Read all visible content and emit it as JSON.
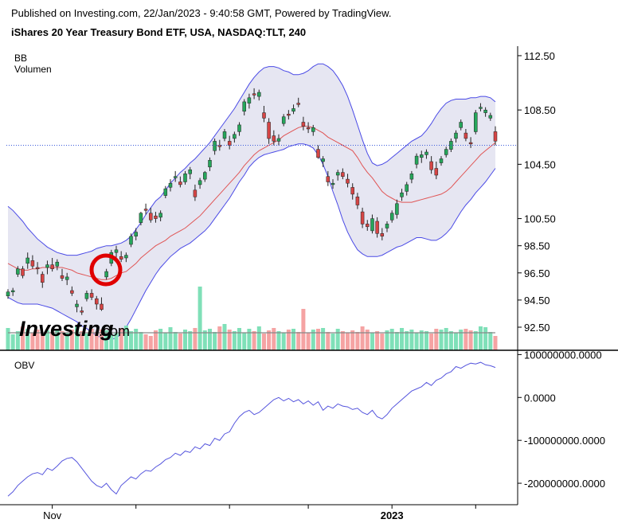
{
  "header": {
    "published": "Published on Investing.com, 22/Jan/2023 - 9:40:58 GMT, Powered by TradingView.",
    "title": "iShares 20  Year Treasury Bond ETF, USA, NASDAQ:TLT, 240"
  },
  "watermark": {
    "text": "Investing",
    "suffix": ".com"
  },
  "colors": {
    "up": "#26a65b",
    "down": "#d64545",
    "band_fill": "#e6e6f2",
    "band_line": "#4a4ae6",
    "basis": "#e05555",
    "obv": "#5555dd",
    "vol_up": "#7fe0b8",
    "vol_down": "#f5a3a3",
    "vol_ma": "#888888",
    "marker": "#e00000"
  },
  "chart_data": [
    {
      "type": "candlestick",
      "indicator_labels": [
        "BB",
        "Volumen"
      ],
      "ylim": [
        90.8,
        113.2
      ],
      "y_ticks": [
        "112.50",
        "108.50",
        "104.50",
        "100.50",
        "98.50",
        "96.50",
        "94.50",
        "92.50"
      ],
      "last_price": 105.9,
      "candles": [
        [
          94.8,
          95.3,
          94.6,
          95.1
        ],
        [
          95.1,
          95.4,
          94.8,
          95.2
        ],
        [
          96.4,
          97.0,
          96.2,
          96.8
        ],
        [
          96.8,
          97.0,
          96.1,
          96.3
        ],
        [
          97.2,
          98.0,
          96.8,
          97.6
        ],
        [
          97.4,
          97.8,
          96.8,
          97.0
        ],
        [
          96.9,
          97.3,
          96.4,
          96.8
        ],
        [
          96.4,
          96.6,
          95.4,
          95.8
        ],
        [
          96.9,
          97.4,
          96.4,
          97.1
        ],
        [
          97.1,
          97.6,
          96.6,
          96.8
        ],
        [
          97.0,
          97.5,
          96.7,
          97.3
        ],
        [
          96.3,
          96.8,
          95.9,
          96.1
        ],
        [
          96.0,
          96.5,
          95.6,
          96.2
        ],
        [
          95.2,
          95.5,
          94.8,
          95.0
        ],
        [
          94.0,
          94.5,
          93.6,
          94.2
        ],
        [
          93.7,
          94.0,
          93.4,
          93.6
        ],
        [
          94.6,
          95.2,
          94.4,
          95.0
        ],
        [
          95.0,
          95.3,
          94.5,
          94.7
        ],
        [
          94.6,
          94.8,
          93.8,
          94.2
        ],
        [
          94.2,
          94.7,
          93.7,
          93.8
        ],
        [
          96.2,
          96.8,
          96.0,
          96.6
        ],
        [
          97.2,
          98.2,
          97.0,
          98.0
        ],
        [
          98.0,
          98.5,
          97.4,
          98.2
        ],
        [
          97.7,
          98.1,
          97.3,
          97.5
        ],
        [
          97.6,
          98.0,
          97.3,
          97.8
        ],
        [
          98.6,
          99.4,
          98.4,
          99.2
        ],
        [
          99.2,
          99.8,
          98.9,
          99.5
        ],
        [
          100.2,
          101.0,
          100.0,
          100.9
        ],
        [
          101.2,
          101.6,
          100.8,
          101.1
        ],
        [
          100.9,
          101.3,
          100.2,
          100.4
        ],
        [
          100.7,
          101.0,
          100.2,
          100.5
        ],
        [
          100.6,
          101.1,
          100.3,
          100.9
        ],
        [
          102.2,
          102.9,
          102.0,
          102.7
        ],
        [
          102.8,
          103.4,
          102.5,
          103.1
        ],
        [
          103.5,
          104.0,
          103.2,
          103.6
        ],
        [
          103.2,
          103.6,
          102.8,
          103.0
        ],
        [
          103.2,
          104.0,
          103.0,
          103.8
        ],
        [
          103.8,
          104.3,
          103.4,
          104.1
        ],
        [
          102.6,
          103.0,
          101.8,
          102.1
        ],
        [
          103.0,
          103.5,
          102.7,
          103.3
        ],
        [
          103.4,
          104.0,
          103.2,
          103.9
        ],
        [
          104.3,
          105.0,
          104.0,
          104.8
        ],
        [
          105.5,
          106.4,
          105.2,
          106.2
        ],
        [
          105.9,
          106.3,
          105.5,
          105.8
        ],
        [
          106.4,
          107.1,
          106.2,
          106.9
        ],
        [
          106.2,
          106.6,
          105.6,
          105.9
        ],
        [
          106.4,
          106.9,
          106.1,
          106.7
        ],
        [
          106.9,
          107.6,
          106.6,
          107.4
        ],
        [
          108.4,
          109.3,
          108.1,
          109.1
        ],
        [
          109.0,
          109.7,
          108.6,
          109.4
        ],
        [
          109.7,
          110.1,
          109.3,
          109.6
        ],
        [
          109.5,
          110.0,
          109.2,
          109.8
        ],
        [
          108.3,
          108.8,
          107.6,
          107.9
        ],
        [
          107.6,
          107.9,
          106.0,
          106.4
        ],
        [
          106.6,
          107.0,
          105.9,
          106.2
        ],
        [
          106.2,
          106.7,
          105.9,
          106.4
        ],
        [
          107.5,
          108.2,
          107.3,
          108.0
        ],
        [
          108.2,
          108.5,
          107.8,
          108.1
        ],
        [
          108.4,
          108.9,
          108.2,
          108.6
        ],
        [
          109.0,
          109.4,
          108.7,
          108.9
        ],
        [
          107.6,
          108.0,
          107.0,
          107.3
        ],
        [
          107.2,
          107.6,
          106.8,
          107.1
        ],
        [
          106.9,
          107.4,
          106.6,
          107.2
        ],
        [
          105.6,
          105.9,
          104.9,
          105.0
        ],
        [
          104.7,
          105.1,
          104.3,
          104.9
        ],
        [
          103.6,
          104.0,
          102.9,
          103.2
        ],
        [
          103.0,
          103.4,
          102.7,
          103.1
        ],
        [
          103.7,
          104.1,
          103.3,
          103.9
        ],
        [
          103.9,
          104.2,
          103.4,
          103.6
        ],
        [
          103.4,
          103.8,
          102.8,
          103.1
        ],
        [
          102.8,
          103.1,
          101.9,
          102.3
        ],
        [
          102.1,
          102.4,
          101.2,
          101.5
        ],
        [
          101.0,
          101.3,
          99.8,
          100.1
        ],
        [
          100.1,
          100.4,
          99.6,
          99.9
        ],
        [
          99.6,
          100.8,
          99.4,
          100.5
        ],
        [
          100.3,
          100.6,
          99.1,
          99.4
        ],
        [
          99.4,
          99.8,
          98.9,
          99.2
        ],
        [
          99.8,
          100.3,
          99.5,
          100.1
        ],
        [
          100.4,
          101.1,
          100.2,
          100.9
        ],
        [
          100.8,
          101.9,
          100.5,
          101.6
        ],
        [
          102.1,
          102.7,
          101.8,
          102.4
        ],
        [
          102.5,
          103.2,
          102.2,
          103.0
        ],
        [
          103.4,
          104.0,
          103.1,
          103.8
        ],
        [
          104.5,
          105.3,
          104.2,
          105.1
        ],
        [
          105.0,
          105.5,
          104.6,
          105.2
        ],
        [
          105.2,
          105.6,
          104.9,
          105.4
        ],
        [
          104.7,
          105.1,
          103.8,
          104.1
        ],
        [
          104.2,
          104.7,
          103.4,
          103.7
        ],
        [
          104.6,
          105.1,
          104.4,
          104.9
        ],
        [
          105.2,
          105.8,
          105.0,
          105.6
        ],
        [
          105.6,
          106.4,
          105.4,
          106.2
        ],
        [
          106.4,
          107.0,
          106.1,
          106.8
        ],
        [
          107.2,
          107.8,
          107.0,
          107.6
        ],
        [
          106.8,
          107.1,
          106.2,
          106.4
        ],
        [
          106.1,
          106.5,
          105.7,
          106.0
        ],
        [
          106.9,
          108.5,
          106.7,
          108.3
        ],
        [
          108.6,
          109.0,
          108.4,
          108.7
        ],
        [
          108.3,
          108.7,
          108.0,
          108.5
        ],
        [
          107.9,
          108.3,
          107.7,
          108.1
        ],
        [
          106.9,
          107.3,
          105.9,
          106.2
        ]
      ],
      "bb_upper": [
        101.4,
        101.1,
        100.7,
        100.3,
        99.8,
        99.4,
        99.0,
        98.7,
        98.4,
        98.2,
        98.0,
        97.9,
        97.8,
        97.8,
        97.8,
        97.9,
        98.0,
        98.1,
        98.3,
        98.4,
        98.5,
        98.5,
        98.6,
        98.7,
        98.9,
        99.2,
        99.7,
        100.2,
        100.8,
        101.3,
        101.8,
        102.1,
        102.6,
        103.1,
        103.5,
        103.9,
        104.2,
        104.6,
        104.9,
        105.3,
        105.7,
        106.1,
        106.6,
        107.1,
        107.6,
        108.1,
        108.6,
        109.2,
        109.8,
        110.4,
        110.9,
        111.3,
        111.6,
        111.7,
        111.7,
        111.6,
        111.4,
        111.3,
        111.1,
        111.1,
        111.2,
        111.4,
        111.7,
        111.9,
        111.9,
        111.7,
        111.4,
        110.9,
        110.3,
        109.5,
        108.5,
        107.4,
        106.3,
        105.3,
        104.6,
        104.4,
        104.5,
        104.7,
        105.0,
        105.3,
        105.6,
        105.9,
        106.2,
        106.4,
        106.6,
        107.0,
        107.5,
        108.1,
        108.6,
        109.0,
        109.2,
        109.3,
        109.3,
        109.3,
        109.4,
        109.4,
        109.5,
        109.5,
        109.4,
        109.1
      ],
      "bb_basis": [
        97.2,
        97.0,
        96.8,
        96.7,
        96.7,
        96.8,
        96.8,
        96.9,
        96.9,
        96.9,
        96.9,
        96.9,
        96.8,
        96.7,
        96.5,
        96.4,
        96.3,
        96.2,
        96.1,
        96.0,
        96.0,
        96.1,
        96.3,
        96.5,
        96.6,
        96.9,
        97.2,
        97.6,
        97.9,
        98.2,
        98.5,
        98.7,
        98.9,
        99.2,
        99.4,
        99.6,
        99.8,
        100.1,
        100.4,
        100.7,
        101.1,
        101.5,
        101.9,
        102.3,
        102.7,
        103.1,
        103.5,
        103.9,
        104.4,
        104.8,
        105.2,
        105.5,
        105.7,
        105.9,
        106.1,
        106.3,
        106.6,
        106.8,
        107.0,
        107.2,
        107.3,
        107.3,
        107.2,
        107.0,
        106.8,
        106.5,
        106.3,
        106.1,
        105.9,
        105.7,
        105.5,
        105.0,
        104.4,
        103.9,
        103.5,
        103.0,
        102.5,
        102.2,
        102.0,
        101.8,
        101.7,
        101.7,
        101.7,
        101.8,
        101.9,
        102.0,
        102.1,
        102.2,
        102.3,
        102.5,
        102.8,
        103.2,
        103.6,
        104.0,
        104.4,
        104.8,
        105.2,
        105.5,
        105.8,
        106.1
      ],
      "bb_lower": [
        94.7,
        94.5,
        94.3,
        94.2,
        94.2,
        94.2,
        94.2,
        94.1,
        94.0,
        93.9,
        93.7,
        93.5,
        93.3,
        93.1,
        92.9,
        92.6,
        92.4,
        92.1,
        91.9,
        91.7,
        91.6,
        91.6,
        91.7,
        92.0,
        92.5,
        93.1,
        93.8,
        94.5,
        95.2,
        95.8,
        96.4,
        96.9,
        97.3,
        97.7,
        98.0,
        98.3,
        98.5,
        98.7,
        99.0,
        99.3,
        99.6,
        100.0,
        100.5,
        101.0,
        101.5,
        102.0,
        102.6,
        103.2,
        103.7,
        104.3,
        104.7,
        105.0,
        105.2,
        105.3,
        105.4,
        105.5,
        105.6,
        105.8,
        105.9,
        106.0,
        106.0,
        105.9,
        105.7,
        105.2,
        104.5,
        103.6,
        102.5,
        101.5,
        100.4,
        99.5,
        98.8,
        98.2,
        97.9,
        97.7,
        97.7,
        97.7,
        97.8,
        98.0,
        98.2,
        98.4,
        98.5,
        98.7,
        98.9,
        99.1,
        99.1,
        99.0,
        98.9,
        98.9,
        99.1,
        99.4,
        99.8,
        100.4,
        101.0,
        101.5,
        101.9,
        102.4,
        102.8,
        103.2,
        103.7,
        104.2
      ],
      "volume_ylim": [
        0,
        100
      ],
      "volume": [
        28,
        20,
        24,
        30,
        27,
        22,
        26,
        21,
        25,
        23,
        27,
        24,
        22,
        26,
        30,
        24,
        21,
        27,
        23,
        26,
        25,
        19,
        22,
        28,
        31,
        24,
        27,
        23,
        20,
        18,
        25,
        27,
        22,
        29,
        23,
        21,
        26,
        24,
        28,
        22,
        25,
        27,
        23,
        30,
        33,
        26,
        24,
        28,
        22,
        27,
        24,
        30,
        21,
        25,
        28,
        24,
        22,
        26,
        27,
        23,
        25,
        22,
        26,
        27,
        28,
        23,
        21,
        27,
        24,
        22,
        25,
        23,
        30,
        26,
        22,
        24,
        21,
        25,
        27,
        23,
        28,
        24,
        26,
        22,
        25,
        24,
        21,
        27,
        26,
        28,
        24,
        22,
        26,
        27,
        25,
        24,
        30,
        29,
        23,
        18
      ],
      "volume_spikes": {
        "39": 80,
        "60": 52
      },
      "volume_ma": 22
    },
    {
      "type": "line",
      "indicator_label": "OBV",
      "ylim": [
        -250000000,
        110000000
      ],
      "y_ticks": [
        "100000000.0000",
        "0.0000",
        "-100000000.0000",
        "-200000000.0000"
      ],
      "x_labels": [
        "Nov",
        "2023"
      ],
      "obv": [
        -230000000,
        -220000000,
        -205000000,
        -195000000,
        -185000000,
        -178000000,
        -175000000,
        -180000000,
        -165000000,
        -170000000,
        -160000000,
        -148000000,
        -142000000,
        -140000000,
        -150000000,
        -165000000,
        -180000000,
        -195000000,
        -205000000,
        -210000000,
        -200000000,
        -215000000,
        -225000000,
        -205000000,
        -195000000,
        -185000000,
        -190000000,
        -178000000,
        -170000000,
        -172000000,
        -162000000,
        -155000000,
        -145000000,
        -140000000,
        -130000000,
        -135000000,
        -125000000,
        -128000000,
        -115000000,
        -120000000,
        -108000000,
        -112000000,
        -95000000,
        -100000000,
        -85000000,
        -80000000,
        -60000000,
        -45000000,
        -35000000,
        -30000000,
        -40000000,
        -35000000,
        -25000000,
        -15000000,
        -5000000,
        0,
        -8000000,
        -2000000,
        -10000000,
        -5000000,
        -15000000,
        -8000000,
        -18000000,
        -10000000,
        -30000000,
        -20000000,
        -25000000,
        -15000000,
        -20000000,
        -22000000,
        -28000000,
        -25000000,
        -35000000,
        -40000000,
        -30000000,
        -45000000,
        -50000000,
        -40000000,
        -25000000,
        -15000000,
        -5000000,
        5000000,
        15000000,
        20000000,
        25000000,
        35000000,
        28000000,
        40000000,
        45000000,
        55000000,
        60000000,
        72000000,
        68000000,
        75000000,
        80000000,
        78000000,
        82000000,
        76000000,
        74000000,
        70000000
      ]
    }
  ]
}
